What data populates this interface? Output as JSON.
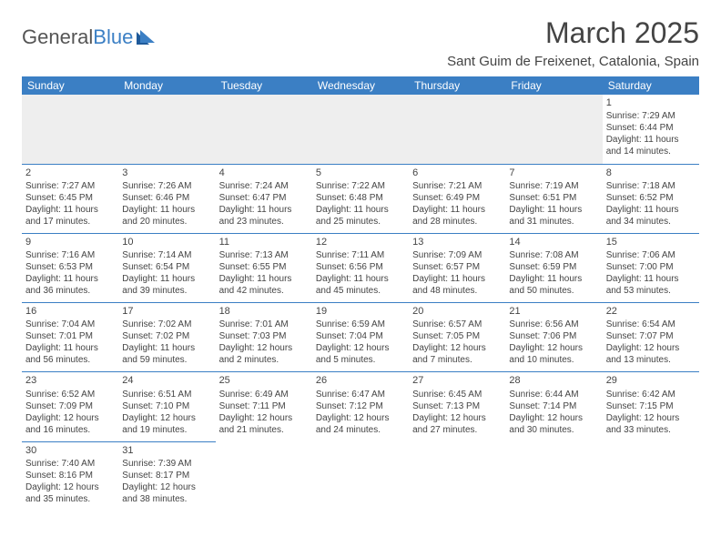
{
  "logo": {
    "text1": "General",
    "text2": "Blue"
  },
  "title": "March 2025",
  "location": "Sant Guim de Freixenet, Catalonia, Spain",
  "colors": {
    "accent": "#3b7fc4",
    "text": "#444444",
    "grid_bg_empty": "#eeeeee"
  },
  "dayHeaders": [
    "Sunday",
    "Monday",
    "Tuesday",
    "Wednesday",
    "Thursday",
    "Friday",
    "Saturday"
  ],
  "weeks": [
    [
      null,
      null,
      null,
      null,
      null,
      null,
      {
        "n": "1",
        "sr": "Sunrise: 7:29 AM",
        "ss": "Sunset: 6:44 PM",
        "dl": "Daylight: 11 hours and 14 minutes."
      }
    ],
    [
      {
        "n": "2",
        "sr": "Sunrise: 7:27 AM",
        "ss": "Sunset: 6:45 PM",
        "dl": "Daylight: 11 hours and 17 minutes."
      },
      {
        "n": "3",
        "sr": "Sunrise: 7:26 AM",
        "ss": "Sunset: 6:46 PM",
        "dl": "Daylight: 11 hours and 20 minutes."
      },
      {
        "n": "4",
        "sr": "Sunrise: 7:24 AM",
        "ss": "Sunset: 6:47 PM",
        "dl": "Daylight: 11 hours and 23 minutes."
      },
      {
        "n": "5",
        "sr": "Sunrise: 7:22 AM",
        "ss": "Sunset: 6:48 PM",
        "dl": "Daylight: 11 hours and 25 minutes."
      },
      {
        "n": "6",
        "sr": "Sunrise: 7:21 AM",
        "ss": "Sunset: 6:49 PM",
        "dl": "Daylight: 11 hours and 28 minutes."
      },
      {
        "n": "7",
        "sr": "Sunrise: 7:19 AM",
        "ss": "Sunset: 6:51 PM",
        "dl": "Daylight: 11 hours and 31 minutes."
      },
      {
        "n": "8",
        "sr": "Sunrise: 7:18 AM",
        "ss": "Sunset: 6:52 PM",
        "dl": "Daylight: 11 hours and 34 minutes."
      }
    ],
    [
      {
        "n": "9",
        "sr": "Sunrise: 7:16 AM",
        "ss": "Sunset: 6:53 PM",
        "dl": "Daylight: 11 hours and 36 minutes."
      },
      {
        "n": "10",
        "sr": "Sunrise: 7:14 AM",
        "ss": "Sunset: 6:54 PM",
        "dl": "Daylight: 11 hours and 39 minutes."
      },
      {
        "n": "11",
        "sr": "Sunrise: 7:13 AM",
        "ss": "Sunset: 6:55 PM",
        "dl": "Daylight: 11 hours and 42 minutes."
      },
      {
        "n": "12",
        "sr": "Sunrise: 7:11 AM",
        "ss": "Sunset: 6:56 PM",
        "dl": "Daylight: 11 hours and 45 minutes."
      },
      {
        "n": "13",
        "sr": "Sunrise: 7:09 AM",
        "ss": "Sunset: 6:57 PM",
        "dl": "Daylight: 11 hours and 48 minutes."
      },
      {
        "n": "14",
        "sr": "Sunrise: 7:08 AM",
        "ss": "Sunset: 6:59 PM",
        "dl": "Daylight: 11 hours and 50 minutes."
      },
      {
        "n": "15",
        "sr": "Sunrise: 7:06 AM",
        "ss": "Sunset: 7:00 PM",
        "dl": "Daylight: 11 hours and 53 minutes."
      }
    ],
    [
      {
        "n": "16",
        "sr": "Sunrise: 7:04 AM",
        "ss": "Sunset: 7:01 PM",
        "dl": "Daylight: 11 hours and 56 minutes."
      },
      {
        "n": "17",
        "sr": "Sunrise: 7:02 AM",
        "ss": "Sunset: 7:02 PM",
        "dl": "Daylight: 11 hours and 59 minutes."
      },
      {
        "n": "18",
        "sr": "Sunrise: 7:01 AM",
        "ss": "Sunset: 7:03 PM",
        "dl": "Daylight: 12 hours and 2 minutes."
      },
      {
        "n": "19",
        "sr": "Sunrise: 6:59 AM",
        "ss": "Sunset: 7:04 PM",
        "dl": "Daylight: 12 hours and 5 minutes."
      },
      {
        "n": "20",
        "sr": "Sunrise: 6:57 AM",
        "ss": "Sunset: 7:05 PM",
        "dl": "Daylight: 12 hours and 7 minutes."
      },
      {
        "n": "21",
        "sr": "Sunrise: 6:56 AM",
        "ss": "Sunset: 7:06 PM",
        "dl": "Daylight: 12 hours and 10 minutes."
      },
      {
        "n": "22",
        "sr": "Sunrise: 6:54 AM",
        "ss": "Sunset: 7:07 PM",
        "dl": "Daylight: 12 hours and 13 minutes."
      }
    ],
    [
      {
        "n": "23",
        "sr": "Sunrise: 6:52 AM",
        "ss": "Sunset: 7:09 PM",
        "dl": "Daylight: 12 hours and 16 minutes."
      },
      {
        "n": "24",
        "sr": "Sunrise: 6:51 AM",
        "ss": "Sunset: 7:10 PM",
        "dl": "Daylight: 12 hours and 19 minutes."
      },
      {
        "n": "25",
        "sr": "Sunrise: 6:49 AM",
        "ss": "Sunset: 7:11 PM",
        "dl": "Daylight: 12 hours and 21 minutes."
      },
      {
        "n": "26",
        "sr": "Sunrise: 6:47 AM",
        "ss": "Sunset: 7:12 PM",
        "dl": "Daylight: 12 hours and 24 minutes."
      },
      {
        "n": "27",
        "sr": "Sunrise: 6:45 AM",
        "ss": "Sunset: 7:13 PM",
        "dl": "Daylight: 12 hours and 27 minutes."
      },
      {
        "n": "28",
        "sr": "Sunrise: 6:44 AM",
        "ss": "Sunset: 7:14 PM",
        "dl": "Daylight: 12 hours and 30 minutes."
      },
      {
        "n": "29",
        "sr": "Sunrise: 6:42 AM",
        "ss": "Sunset: 7:15 PM",
        "dl": "Daylight: 12 hours and 33 minutes."
      }
    ],
    [
      {
        "n": "30",
        "sr": "Sunrise: 7:40 AM",
        "ss": "Sunset: 8:16 PM",
        "dl": "Daylight: 12 hours and 35 minutes."
      },
      {
        "n": "31",
        "sr": "Sunrise: 7:39 AM",
        "ss": "Sunset: 8:17 PM",
        "dl": "Daylight: 12 hours and 38 minutes."
      },
      null,
      null,
      null,
      null,
      null
    ]
  ]
}
